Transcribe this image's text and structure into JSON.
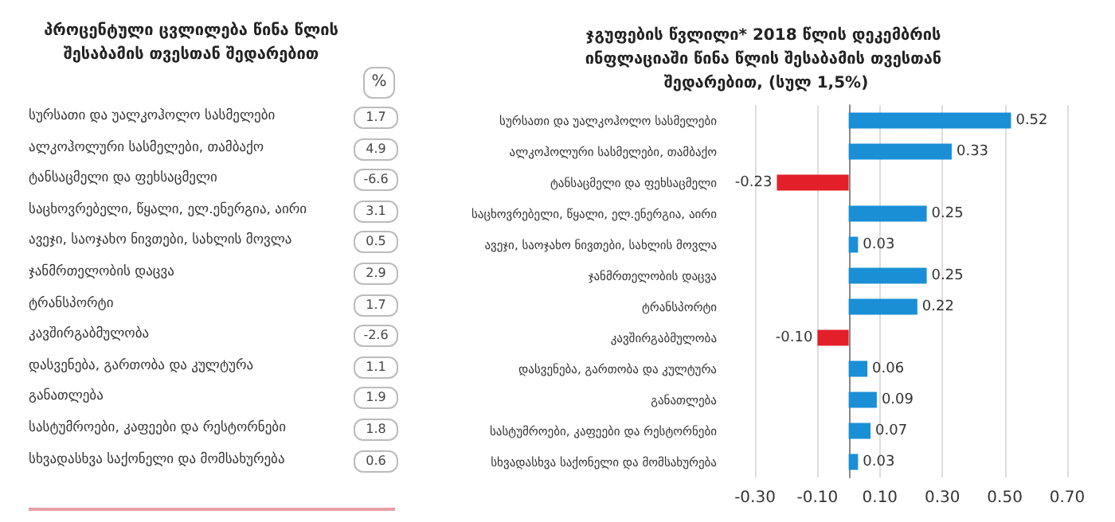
{
  "chart_data": [
    {
      "type": "other",
      "title": "პროცენტული ცვლილება წინა წლის შესაბამის თვესთან შედარებით",
      "ylabel": "%",
      "categories": [
        "სურსათი და უალკოჰოლო სასმელები",
        "ალკოჰოლური სასმელები, თამბაქო",
        "ტანსაცმელი და ფეხსაცმელი",
        "საცხოვრებელი, წყალი, ელ.ენერგია, აირი",
        "ავეჯი, საოჯახო ნივთები, სახლის მოვლა",
        "ჯანმრთელობის დაცვა",
        "ტრანსპორტი",
        "კავშირგაბმულობა",
        "დასვენება, გართობა და კულტურა",
        "განათლება",
        "სასტუმროები, კაფეები და რესტორნები",
        "სხვადასხვა საქონელი და მომსახურება"
      ],
      "values": [
        1.7,
        4.9,
        -6.6,
        3.1,
        0.5,
        2.9,
        1.7,
        -2.6,
        1.1,
        1.9,
        1.8,
        0.6
      ],
      "value_labels": [
        "1.7",
        "4.9",
        "-6.6",
        "3.1",
        "0.5",
        "2.9",
        "1.7",
        "-2.6",
        "1.1",
        "1.9",
        "1.8",
        "0.6"
      ]
    },
    {
      "type": "bar",
      "orientation": "horizontal",
      "title": "ჯგუფების წვლილი* 2018 წლის დეკემბრის ინფლაციაში წინა წლის შესაბამის თვესთან შედარებით, (სულ 1,5%)",
      "categories": [
        "სურსათი და უალკოჰოლო სასმელები",
        "ალკოჰოლური სასმელები, თამბაქო",
        "ტანსაცმელი და ფეხსაცმელი",
        "საცხოვრებელი, წყალი, ელ.ენერგია, აირი",
        "ავეჯი, საოჯახო ნივთები, სახლის მოვლა",
        "ჯანმრთელობის დაცვა",
        "ტრანსპორტი",
        "კავშირგაბმულობა",
        "დასვენება, გართობა და კულტურა",
        "განათლება",
        "სასტუმროები, კაფეები და რესტორნები",
        "სხვადასხვა საქონელი და მომსახურება"
      ],
      "values": [
        0.52,
        0.33,
        -0.23,
        0.25,
        0.03,
        0.25,
        0.22,
        -0.1,
        0.06,
        0.09,
        0.07,
        0.03
      ],
      "colors": [
        "#1a8fd6",
        "#1a8fd6",
        "#e3202a",
        "#1a8fd6",
        "#1a8fd6",
        "#1a8fd6",
        "#1a8fd6",
        "#e3202a",
        "#1a8fd6",
        "#1a8fd6",
        "#1a8fd6",
        "#1a8fd6"
      ],
      "value_labels": [
        "0.52",
        "0.33",
        "-0.23",
        "0.25",
        "0.03",
        "0.25",
        "0.22",
        "-0.10",
        "0.06",
        "0.09",
        "0.07",
        "0.03"
      ],
      "xlim": [
        -0.3,
        0.7
      ],
      "xticks": [
        {
          "value": -0.3,
          "label": "-0.30"
        },
        {
          "value": -0.1,
          "label": "-0.10"
        },
        {
          "value": 0.1,
          "label": "0.10"
        },
        {
          "value": 0.3,
          "label": "0.30"
        },
        {
          "value": 0.5,
          "label": "0.50"
        },
        {
          "value": 0.7,
          "label": "0.70"
        }
      ],
      "grid": "x"
    }
  ]
}
